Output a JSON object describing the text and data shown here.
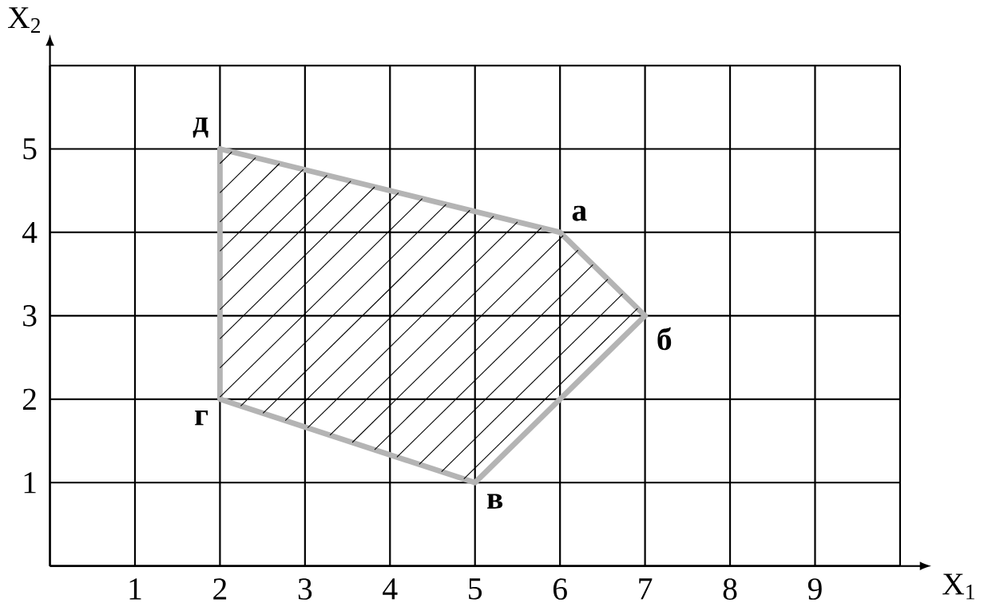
{
  "chart_data": {
    "type": "line",
    "xlabel": "X$_{1}$",
    "ylabel": "X$_{2}$",
    "series": [
      {
        "x": [
          2,
          2,
          5,
          7
        ],
        "values": [
          5,
          2,
          1,
          3
        ],
        "color": "#b4b4b4"
      },
      {
        "x": [
          2,
          6,
          7
        ],
        "values": [
          5,
          4,
          3
        ],
        "color": "#b4b4b4"
      }
    ],
    "xlim": [
      0,
      10
    ],
    "ylim": [
      0,
      6
    ],
    "xticks": [
      {
        "value": 0,
        "label": null
      },
      1,
      2,
      3,
      4,
      5,
      6,
      7,
      8,
      9,
      {
        "value": 10,
        "label": null
      }
    ],
    "yticks": [
      {
        "value": 0,
        "label": null
      },
      1,
      2,
      3,
      4,
      5,
      {
        "value": 6,
        "label": null
      }
    ],
    "grid": true,
    "annotations": [
      {
        "text": "д",
        "x": 2,
        "y": 5
      },
      {
        "text": "а",
        "x": 6,
        "y": 4
      },
      {
        "text": "б",
        "x": 7,
        "y": 3
      },
      {
        "text": "в",
        "x": 5,
        "y": 1
      },
      {
        "text": "г",
        "x": 2,
        "y": 2
      }
    ]
  }
}
